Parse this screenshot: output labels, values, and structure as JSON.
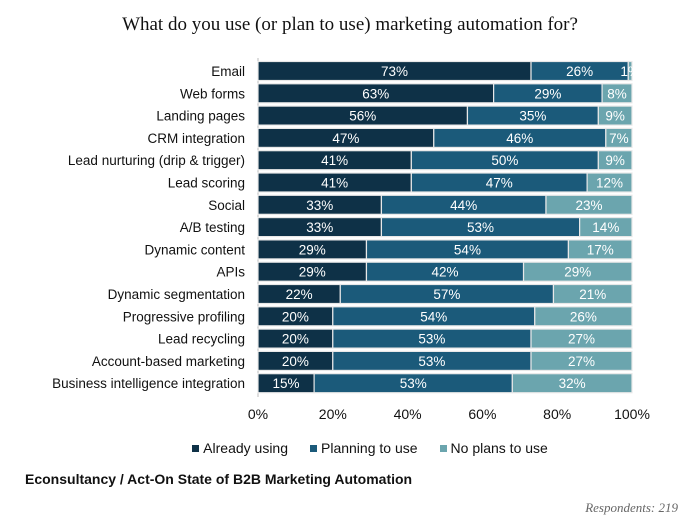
{
  "chart_data": {
    "type": "bar",
    "orientation": "horizontal",
    "stacked": true,
    "title": "What do you use (or plan to use) marketing automation for?",
    "categories": [
      "Email",
      "Web forms",
      "Landing pages",
      "CRM integration",
      "Lead nurturing (drip & trigger)",
      "Lead scoring",
      "Social",
      "A/B testing",
      "Dynamic content",
      "APIs",
      "Dynamic segmentation",
      "Progressive profiling",
      "Lead recycling",
      "Account-based marketing",
      "Business intelligence integration"
    ],
    "series": [
      {
        "name": "Already using",
        "color": "#0e3147",
        "values": [
          73,
          63,
          56,
          47,
          41,
          41,
          33,
          33,
          29,
          29,
          22,
          20,
          20,
          20,
          15
        ]
      },
      {
        "name": "Planning to use",
        "color": "#1b5a7a",
        "values": [
          26,
          29,
          35,
          46,
          50,
          47,
          44,
          53,
          54,
          42,
          57,
          54,
          53,
          53,
          53
        ]
      },
      {
        "name": "No plans to use",
        "color": "#6ba5ae",
        "values": [
          1,
          8,
          9,
          7,
          9,
          12,
          23,
          14,
          17,
          29,
          21,
          26,
          27,
          27,
          32
        ]
      }
    ],
    "xlim": [
      0,
      100
    ],
    "xticks": [
      "0%",
      "20%",
      "40%",
      "60%",
      "80%",
      "100%"
    ],
    "legend": "bottom",
    "grid": false
  },
  "source": "Econsultancy / Act-On State of B2B Marketing Automation",
  "respondents": "Respondents: 219"
}
